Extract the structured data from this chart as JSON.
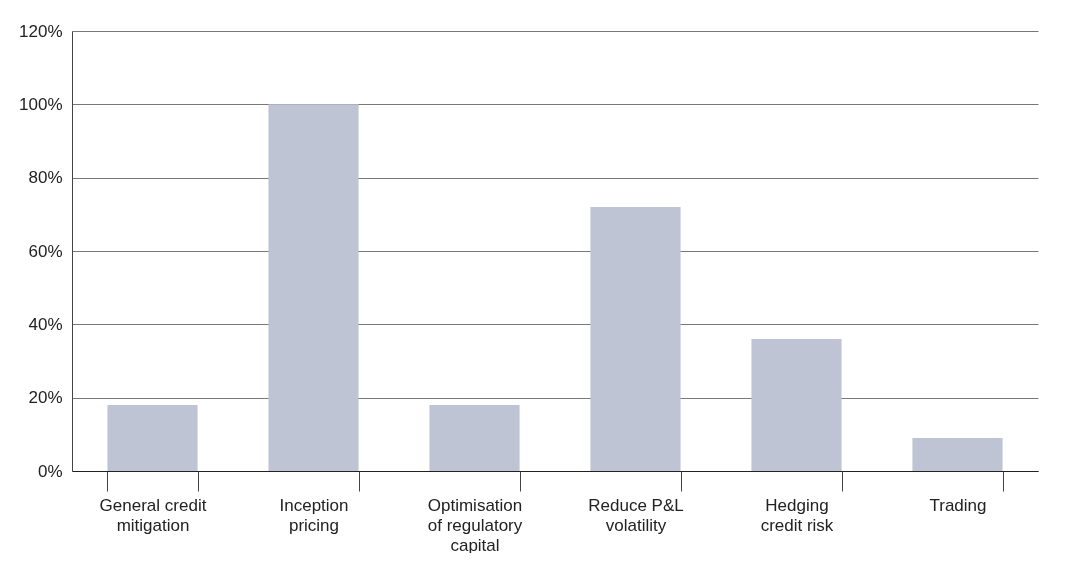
{
  "chart_data": {
    "type": "bar",
    "categories": [
      "General credit mitigation",
      "Inception pricing",
      "Optimisation of regulatory capital",
      "Reduce P&L volatility",
      "Hedging credit risk",
      "Trading"
    ],
    "values": [
      18,
      100,
      18,
      72,
      36,
      9
    ],
    "color": "#bec4d4",
    "ylim": [
      0,
      120
    ],
    "yticks": [
      {
        "value": 0,
        "label": "0%"
      },
      {
        "value": 20,
        "label": "20%"
      },
      {
        "value": 40,
        "label": "40%"
      },
      {
        "value": 60,
        "label": "60%"
      },
      {
        "value": 80,
        "label": "80%"
      },
      {
        "value": 100,
        "label": "100%"
      },
      {
        "value": 120,
        "label": "120%"
      }
    ],
    "grid": "y"
  }
}
